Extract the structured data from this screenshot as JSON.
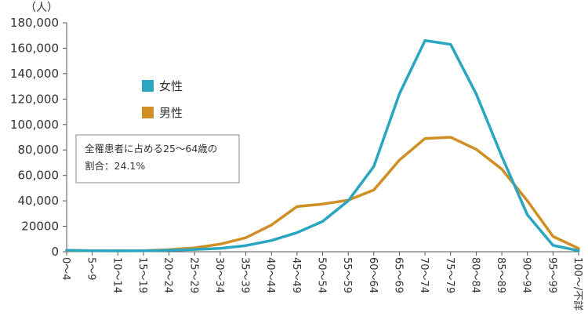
{
  "chart_data": {
    "type": "line",
    "ylabel": "（人）",
    "ylim": [
      0,
      180000
    ],
    "y_ticks": [
      "0",
      "20000",
      "40,000",
      "60,000",
      "80,000",
      "100,000",
      "120,000",
      "140,000",
      "160,000",
      "180,000"
    ],
    "categories": [
      "0～4",
      "5～9",
      "10～14",
      "15～19",
      "20～24",
      "25～29",
      "30～34",
      "35～39",
      "40～44",
      "45～49",
      "50～54",
      "55～59",
      "60～64",
      "65～69",
      "70～74",
      "75～79",
      "80～84",
      "85～89",
      "90～94",
      "95～99",
      "100～/不詳"
    ],
    "series": [
      {
        "name": "女性",
        "color": "#2aa6c0",
        "values": [
          1200,
          800,
          700,
          800,
          1200,
          1800,
          2600,
          4800,
          8800,
          15000,
          23800,
          40000,
          67000,
          124000,
          166000,
          163000,
          124000,
          75000,
          29000,
          5000,
          800
        ]
      },
      {
        "name": "男性",
        "color": "#cf8f24",
        "values": [
          1000,
          700,
          700,
          800,
          1600,
          3000,
          6000,
          11000,
          21000,
          35500,
          37500,
          40500,
          48500,
          72000,
          89000,
          90000,
          80500,
          65000,
          40000,
          12000,
          2600
        ]
      }
    ],
    "legend_position": "upper-left",
    "annotation": [
      "全罹患者に占める25～64歳の",
      "割合：24.1%"
    ],
    "grid": false
  }
}
